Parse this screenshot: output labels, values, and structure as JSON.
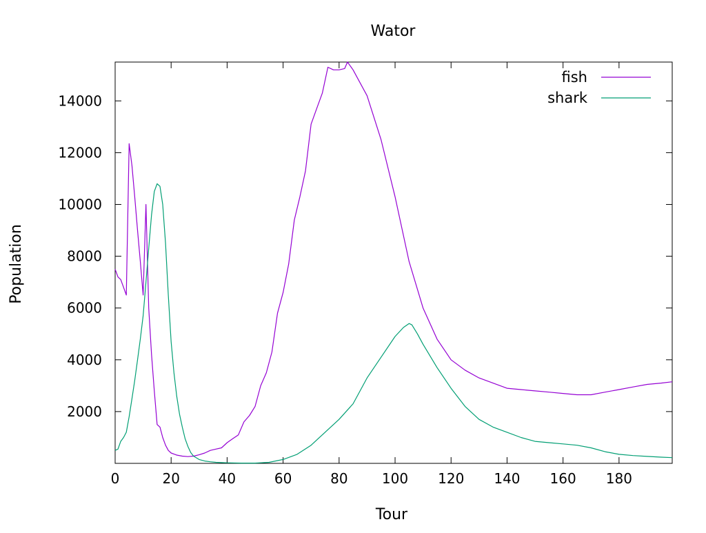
{
  "chart_data": {
    "type": "line",
    "title": "Wator",
    "xlabel": "Tour",
    "ylabel": "Population",
    "xlim": [
      0,
      199
    ],
    "ylim": [
      0,
      15500
    ],
    "xticks": [
      0,
      20,
      40,
      60,
      80,
      100,
      120,
      140,
      160,
      180
    ],
    "yticks": [
      2000,
      4000,
      6000,
      8000,
      10000,
      12000,
      14000
    ],
    "grid": false,
    "legend_position": "top-right",
    "series": [
      {
        "name": "fish",
        "color": "#9400d3",
        "x": [
          0,
          1,
          2,
          3,
          4,
          5,
          6,
          7,
          8,
          9,
          10,
          11,
          12,
          13,
          14,
          15,
          16,
          17,
          18,
          19,
          20,
          22,
          24,
          26,
          28,
          30,
          32,
          34,
          36,
          38,
          40,
          42,
          44,
          46,
          48,
          50,
          52,
          54,
          56,
          58,
          60,
          62,
          64,
          66,
          68,
          70,
          72,
          74,
          76,
          78,
          80,
          82,
          83,
          85,
          87,
          90,
          95,
          100,
          105,
          110,
          115,
          120,
          125,
          130,
          135,
          140,
          145,
          150,
          155,
          160,
          165,
          170,
          175,
          180,
          185,
          190,
          195,
          199
        ],
        "y": [
          7500,
          7200,
          7100,
          6800,
          6500,
          12350,
          11500,
          10300,
          9000,
          7800,
          6500,
          10000,
          6000,
          4200,
          2800,
          1500,
          1400,
          1000,
          700,
          500,
          400,
          320,
          280,
          260,
          280,
          330,
          400,
          500,
          550,
          600,
          800,
          950,
          1100,
          1600,
          1850,
          2200,
          3000,
          3500,
          4300,
          5800,
          6600,
          7700,
          9400,
          10300,
          11300,
          13100,
          13700,
          14300,
          15300,
          15200,
          15200,
          15250,
          15500,
          15200,
          14800,
          14200,
          12500,
          10300,
          7800,
          6000,
          4800,
          4000,
          3600,
          3300,
          3100,
          2900,
          2850,
          2800,
          2750,
          2700,
          2650,
          2650,
          2750,
          2850,
          2950,
          3050,
          3100,
          3150
        ]
      },
      {
        "name": "shark",
        "color": "#009e73",
        "x": [
          0,
          1,
          2,
          3,
          4,
          5,
          6,
          7,
          8,
          9,
          10,
          11,
          12,
          13,
          14,
          15,
          16,
          17,
          18,
          19,
          20,
          21,
          22,
          23,
          24,
          25,
          26,
          27,
          28,
          30,
          32,
          34,
          36,
          38,
          40,
          45,
          50,
          55,
          60,
          65,
          70,
          75,
          80,
          85,
          90,
          95,
          100,
          103,
          105,
          106,
          108,
          110,
          115,
          120,
          125,
          130,
          135,
          140,
          145,
          150,
          155,
          160,
          165,
          170,
          175,
          180,
          185,
          190,
          195,
          199
        ],
        "y": [
          500,
          550,
          850,
          1000,
          1200,
          1800,
          2500,
          3200,
          4000,
          4800,
          5700,
          7000,
          8300,
          9600,
          10500,
          10800,
          10700,
          10000,
          8500,
          6500,
          4700,
          3500,
          2600,
          1900,
          1400,
          950,
          650,
          420,
          280,
          150,
          90,
          60,
          40,
          30,
          20,
          10,
          10,
          40,
          150,
          350,
          700,
          1200,
          1700,
          2300,
          3300,
          4100,
          4900,
          5250,
          5400,
          5350,
          5000,
          4600,
          3700,
          2900,
          2200,
          1700,
          1400,
          1200,
          1000,
          850,
          800,
          750,
          700,
          600,
          450,
          350,
          300,
          270,
          240,
          220
        ]
      }
    ]
  }
}
